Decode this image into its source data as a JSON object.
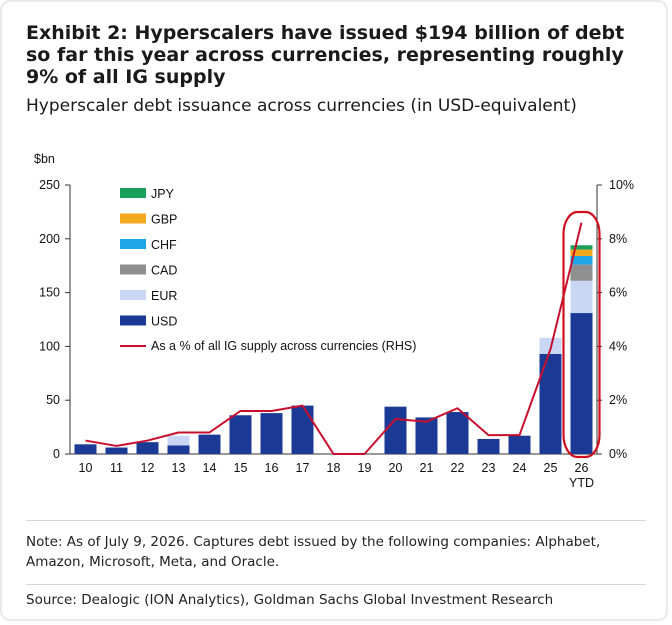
{
  "title": "Exhibit 2: Hyperscalers have issued $194 billion of debt so far this year across currencies, representing roughly 9% of all IG supply",
  "subtitle": "Hyperscaler debt issuance across currencies (in USD-equivalent)",
  "note": "Note: As of July 9, 2026. Captures debt issued by the following companies: Alphabet, Amazon, Microsoft, Meta, and Oracle.",
  "source": "Source: Dealogic (ION Analytics), Goldman Sachs Global Investment Research",
  "chart_data": {
    "type": "bar",
    "stacked": true,
    "categories": [
      "10",
      "11",
      "12",
      "13",
      "14",
      "15",
      "16",
      "17",
      "18",
      "19",
      "20",
      "21",
      "22",
      "23",
      "24",
      "25",
      "26"
    ],
    "category_sublabels": {
      "26": "YTD"
    },
    "y_unit_label": "$bn",
    "ylim": [
      0,
      250
    ],
    "yticks": [
      0,
      50,
      100,
      150,
      200,
      250
    ],
    "y2lim": [
      0,
      10
    ],
    "y2ticks": [
      0,
      2,
      4,
      6,
      8,
      10
    ],
    "y2_tick_format": "%",
    "grid": false,
    "legend_position": "top-left",
    "series": [
      {
        "name": "USD",
        "color": "#1b3a96",
        "values": [
          9,
          6,
          11,
          8,
          18,
          36,
          38,
          45,
          0,
          0,
          44,
          34,
          39,
          14,
          17,
          93,
          131
        ]
      },
      {
        "name": "EUR",
        "color": "#c9d7f4",
        "values": [
          0,
          0,
          0,
          9,
          0,
          0,
          0,
          0,
          0,
          0,
          0,
          0,
          0,
          0,
          0,
          15,
          30
        ]
      },
      {
        "name": "CAD",
        "color": "#8f8f8f",
        "values": [
          0,
          0,
          0,
          0,
          0,
          0,
          0,
          0,
          0,
          0,
          0,
          0,
          0,
          0,
          0,
          0,
          15
        ]
      },
      {
        "name": "CHF",
        "color": "#1ea7e8",
        "values": [
          0,
          0,
          0,
          0,
          0,
          0,
          0,
          0,
          0,
          0,
          0,
          0,
          0,
          0,
          0,
          0,
          8
        ]
      },
      {
        "name": "GBP",
        "color": "#f4a81d",
        "values": [
          0,
          0,
          0,
          0,
          0,
          0,
          0,
          0,
          0,
          0,
          0,
          0,
          0,
          0,
          0,
          0,
          6
        ]
      },
      {
        "name": "JPY",
        "color": "#19a05a",
        "values": [
          0,
          0,
          0,
          0,
          0,
          0,
          0,
          0,
          0,
          0,
          0,
          0,
          0,
          0,
          0,
          0,
          4
        ]
      }
    ],
    "line_series": {
      "name": "As a % of all IG supply across currencies (RHS)",
      "color": "#c8102e",
      "axis": "right",
      "values": [
        0.5,
        0.3,
        0.5,
        0.8,
        0.8,
        1.6,
        1.6,
        1.8,
        0,
        0,
        1.3,
        1.2,
        1.7,
        0.7,
        0.7,
        3.9,
        8.6
      ]
    },
    "highlight": {
      "category": "26",
      "color": "#d0101e"
    }
  }
}
